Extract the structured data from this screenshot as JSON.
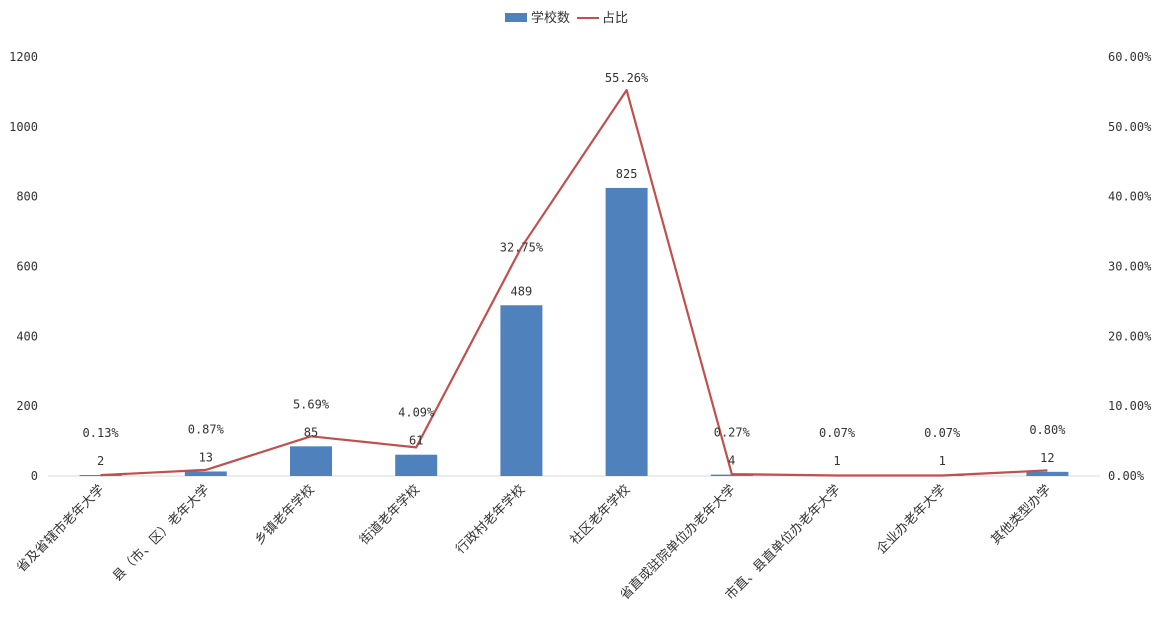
{
  "chart_data": {
    "type": "bar",
    "categories": [
      "省及省辖市老年大学",
      "县（市、区）老年大学",
      "乡镇老年学校",
      "街道老年学校",
      "行政村老年学校",
      "社区老年学校",
      "省直或驻院单位办老年大学",
      "市直、县直单位办老年大学",
      "企业办老年大学",
      "其他类型办学"
    ],
    "series": [
      {
        "name": "学校数",
        "type": "bar",
        "axis": "left",
        "color": "#4f81bd",
        "values": [
          2,
          13,
          85,
          61,
          489,
          825,
          4,
          1,
          1,
          12
        ],
        "labels": [
          "2",
          "13",
          "85",
          "61",
          "489",
          "825",
          "4",
          "1",
          "1",
          "12"
        ]
      },
      {
        "name": "占比",
        "type": "line",
        "axis": "right",
        "color": "#c0504d",
        "values": [
          0.13,
          0.87,
          5.69,
          4.09,
          32.75,
          55.26,
          0.27,
          0.07,
          0.07,
          0.8
        ],
        "labels": [
          "0.13%",
          "0.87%",
          "5.69%",
          "4.09%",
          "32.75%",
          "55.26%",
          "0.27%",
          "0.07%",
          "0.07%",
          "0.80%"
        ]
      }
    ],
    "ylim": [
      0,
      1200
    ],
    "y_ticks": [
      "0",
      "200",
      "400",
      "600",
      "800",
      "1000",
      "1200"
    ],
    "y2lim": [
      0,
      60
    ],
    "y2_ticks": [
      "0.00%",
      "10.00%",
      "20.00%",
      "30.00%",
      "40.00%",
      "50.00%",
      "60.00%"
    ],
    "legend": "top-center",
    "grid": false
  }
}
